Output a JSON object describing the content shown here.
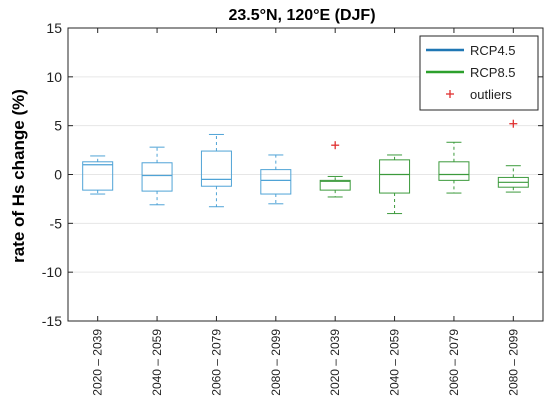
{
  "chart_data": {
    "type": "box",
    "title": "23.5°N, 120°E (DJF)",
    "xlabel": "",
    "ylabel": "rate of Hs change (%)",
    "ylim": [
      -15,
      15
    ],
    "yticks": [
      -15,
      -10,
      -5,
      0,
      5,
      10,
      15
    ],
    "grid": "horizontal",
    "legend_position": "top-right",
    "legend": [
      {
        "label": "RCP4.5",
        "color": "#1f77b4",
        "symbol": "line"
      },
      {
        "label": "RCP8.5",
        "color": "#2ca02c",
        "symbol": "line"
      },
      {
        "label": "outliers",
        "color": "#e03030",
        "symbol": "plus"
      }
    ],
    "categories": [
      "2020 – 2039",
      "2040 – 2059",
      "2060 – 2079",
      "2080 – 2099",
      "2020 – 2039",
      "2040 – 2059",
      "2060 – 2079",
      "2080 – 2099"
    ],
    "series": [
      {
        "name": "RCP4.5",
        "color": "#4fa3d6",
        "boxes": [
          {
            "category_index": 0,
            "whisker_low": -2.0,
            "q1": -1.6,
            "median": 1.0,
            "q3": 1.3,
            "whisker_high": 1.9
          },
          {
            "category_index": 1,
            "whisker_low": -3.1,
            "q1": -1.7,
            "median": -0.1,
            "q3": 1.2,
            "whisker_high": 2.8
          },
          {
            "category_index": 2,
            "whisker_low": -3.3,
            "q1": -1.2,
            "median": -0.5,
            "q3": 2.4,
            "whisker_high": 4.1
          },
          {
            "category_index": 3,
            "whisker_low": -3.0,
            "q1": -2.0,
            "median": -0.6,
            "q3": 0.5,
            "whisker_high": 2.0
          }
        ]
      },
      {
        "name": "RCP8.5",
        "color": "#3c9a3c",
        "boxes": [
          {
            "category_index": 4,
            "whisker_low": -2.3,
            "q1": -1.6,
            "median": -0.7,
            "q3": -0.6,
            "whisker_high": -0.2
          },
          {
            "category_index": 5,
            "whisker_low": -4.0,
            "q1": -1.9,
            "median": 0.0,
            "q3": 1.5,
            "whisker_high": 2.0
          },
          {
            "category_index": 6,
            "whisker_low": -1.9,
            "q1": -0.6,
            "median": 0.0,
            "q3": 1.3,
            "whisker_high": 3.3
          },
          {
            "category_index": 7,
            "whisker_low": -1.8,
            "q1": -1.3,
            "median": -0.8,
            "q3": -0.3,
            "whisker_high": 0.9
          }
        ]
      }
    ],
    "outliers": [
      {
        "category_index": 4,
        "value": 3.0
      },
      {
        "category_index": 7,
        "value": 5.2
      }
    ]
  }
}
